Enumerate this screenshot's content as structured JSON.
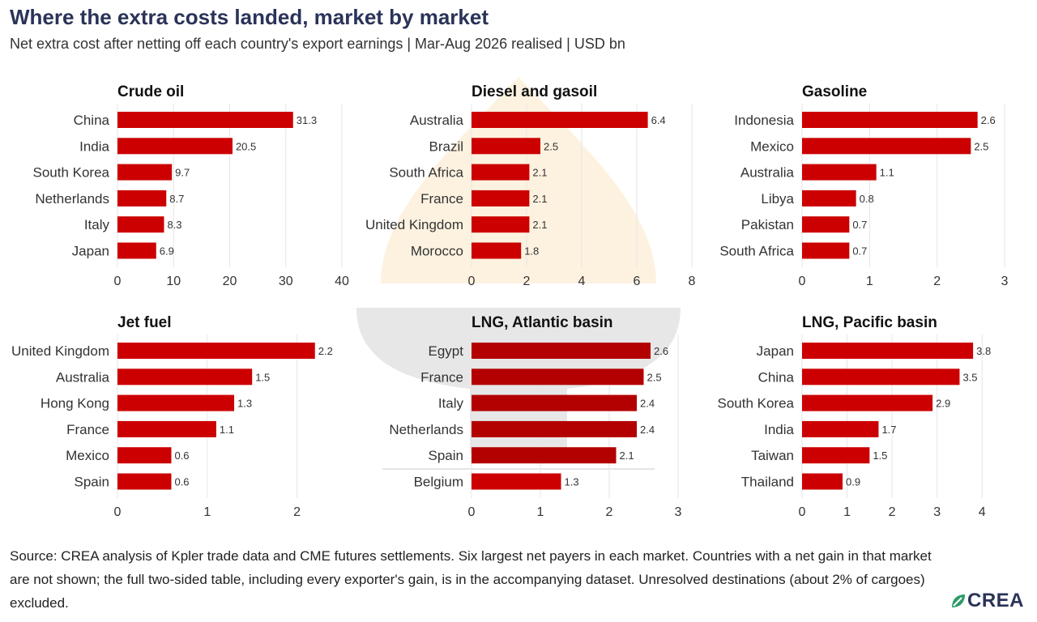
{
  "header": {
    "title": "Where the extra costs landed, market by market",
    "subtitle": "Net extra cost after netting off each country's export earnings | Mar-Aug 2026 realised | USD bn"
  },
  "footer": {
    "source": "Source: CREA analysis of Kpler trade data and CME futures settlements. Six largest net payers in each market. Countries with a net gain in that market are not shown; the full two-sided table, including every exporter's gain, is in the accompanying dataset. Unresolved destinations (about 2% of cargoes) excluded.",
    "logo_text": "CREA"
  },
  "colors": {
    "bar": "#cc0000",
    "bar_dark": "#b30000",
    "grid": "#e6e6e6",
    "title": "#2a3358"
  },
  "chart_data": [
    {
      "type": "bar",
      "orientation": "horizontal",
      "title": "Crude oil",
      "categories": [
        "China",
        "India",
        "South Korea",
        "Netherlands",
        "Italy",
        "Japan"
      ],
      "values": [
        31.3,
        20.5,
        9.7,
        8.7,
        8.3,
        6.9
      ],
      "xlim": [
        0,
        40
      ],
      "xticks": [
        0,
        10,
        20,
        30,
        40
      ],
      "grid": true
    },
    {
      "type": "bar",
      "orientation": "horizontal",
      "title": "Diesel and gasoil",
      "categories": [
        "Australia",
        "Brazil",
        "South Africa",
        "France",
        "United Kingdom",
        "Morocco"
      ],
      "values": [
        6.4,
        2.5,
        2.1,
        2.1,
        2.1,
        1.8
      ],
      "xlim": [
        0,
        8
      ],
      "xticks": [
        0,
        2,
        4,
        6,
        8
      ],
      "grid": true
    },
    {
      "type": "bar",
      "orientation": "horizontal",
      "title": "Gasoline",
      "categories": [
        "Indonesia",
        "Mexico",
        "Australia",
        "Libya",
        "Pakistan",
        "South Africa"
      ],
      "values": [
        2.6,
        2.5,
        1.1,
        0.8,
        0.7,
        0.7
      ],
      "xlim": [
        0,
        3
      ],
      "xticks": [
        0,
        1,
        2,
        3
      ],
      "grid": true
    },
    {
      "type": "bar",
      "orientation": "horizontal",
      "title": "Jet fuel",
      "categories": [
        "United Kingdom",
        "Australia",
        "Hong Kong",
        "France",
        "Mexico",
        "Spain"
      ],
      "values": [
        2.2,
        1.5,
        1.3,
        1.1,
        0.6,
        0.6
      ],
      "xlim": [
        0,
        2.5
      ],
      "xticks": [
        0,
        1,
        2
      ],
      "grid": true
    },
    {
      "type": "bar",
      "orientation": "horizontal",
      "title": "LNG, Atlantic basin",
      "categories": [
        "Egypt",
        "France",
        "Italy",
        "Netherlands",
        "Spain",
        "Belgium"
      ],
      "values": [
        2.6,
        2.5,
        2.4,
        2.4,
        2.1,
        1.3
      ],
      "xlim": [
        0,
        3.2
      ],
      "xticks": [
        0,
        1,
        2,
        3
      ],
      "grid": true
    },
    {
      "type": "bar",
      "orientation": "horizontal",
      "title": "LNG, Pacific basin",
      "categories": [
        "Japan",
        "China",
        "South Korea",
        "India",
        "Taiwan",
        "Thailand"
      ],
      "values": [
        3.8,
        3.5,
        2.9,
        1.7,
        1.5,
        0.9
      ],
      "xlim": [
        0,
        4.5
      ],
      "xticks": [
        0,
        1,
        2,
        3,
        4
      ],
      "grid": true
    }
  ]
}
